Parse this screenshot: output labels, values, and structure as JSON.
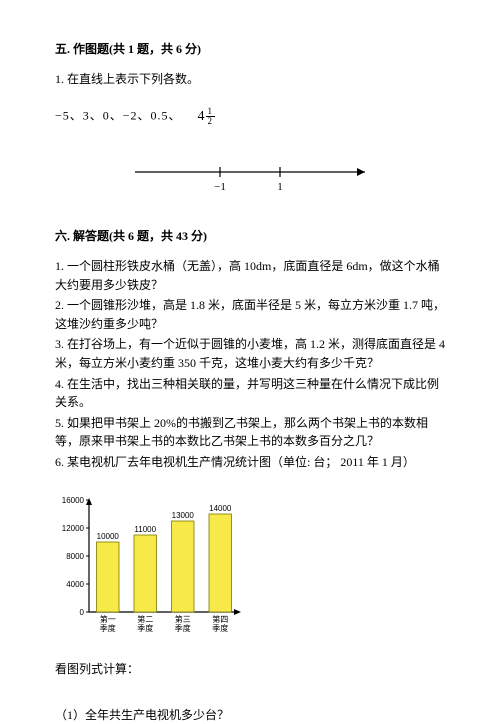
{
  "section5": {
    "title": "五. 作图题(共 1 题，共 6 分)",
    "q1": "1. 在直线上表示下列各数。",
    "numbers": "−5、3、0、−2、0.5、",
    "mixed_whole": "4",
    "mixed_num": "1",
    "mixed_den": "2",
    "axis_neg1": "−1",
    "axis_pos1": "1"
  },
  "section6": {
    "title": "六. 解答题(共 6 题，共 43 分)",
    "q1": "1. 一个圆柱形铁皮水桶（无盖），高 10dm，底面直径是 6dm，做这个水桶大约要用多少铁皮？",
    "q2": "2. 一个圆锥形沙堆，高是 1.8 米，底面半径是 5 米，每立方米沙重 1.7 吨，这堆沙约重多少吨？",
    "q3": "3. 在打谷场上，有一个近似于圆锥的小麦堆，高 1.2 米，测得底面直径是 4 米，每立方米小麦约重 350 千克，这堆小麦大约有多少千克？",
    "q4": "4. 在生活中，找出三种相关联的量，并写明这三种量在什么情况下成比例关系。",
    "q5": "5. 如果把甲书架上 20%的书搬到乙书架上，那么两个书架上书的本数相等，原来甲书架上书的本数比乙书架上书的本数多百分之几？",
    "q6": "6. 某电视机厂去年电视机生产情况统计图（单位: 台；  2011 年 1 月）",
    "chart": {
      "type": "bar",
      "categories": [
        "第一\n季度",
        "第二\n季度",
        "第三\n季度",
        "第四\n季度"
      ],
      "values": [
        10000,
        11000,
        13000,
        14000
      ],
      "value_labels": [
        "10000",
        "11000",
        "13000",
        "14000"
      ],
      "bar_color": "#f7e948",
      "bar_border": "#7a7a00",
      "ylim": [
        0,
        16000
      ],
      "ytick_step": 4000,
      "yticks": [
        "0",
        "4000",
        "8000",
        "12000",
        "16000"
      ],
      "axis_color": "#000000",
      "grid_color": "#cccccc",
      "background_color": "#ffffff",
      "label_fontsize": 8,
      "value_fontsize": 8,
      "bar_width": 0.6
    },
    "subtext": "看图列式计算：",
    "sub1": "（1）全年共生产电视机多少台？"
  }
}
